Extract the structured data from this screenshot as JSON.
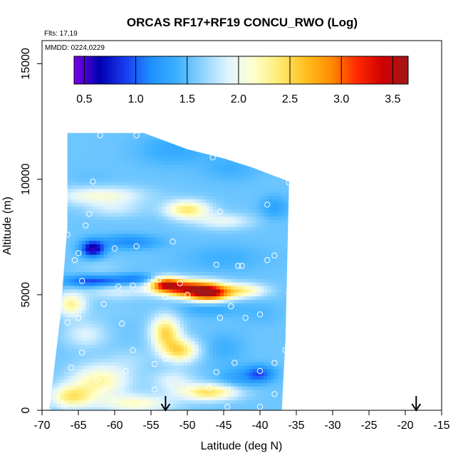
{
  "chart_data": {
    "type": "heatmap",
    "title": "ORCAS RF17+RF19 CONCU_RWO (Log)",
    "annotations": {
      "flights": "Flts: 17,19",
      "dates": "MMDD: 0224,0229"
    },
    "xlabel": "Latitude (deg N)",
    "ylabel": "Altitude (m)",
    "xlim": [
      -70,
      -15
    ],
    "ylim": [
      0,
      16000
    ],
    "x_ticks": [
      -70,
      -65,
      -60,
      -55,
      -50,
      -45,
      -40,
      -35,
      -30,
      -25,
      -20,
      -15
    ],
    "x_tick_labels": [
      "-70",
      "-65",
      "-60",
      "-55",
      "-50",
      "-45",
      "-40",
      "-35",
      "-30",
      "-25",
      "-20",
      "-15"
    ],
    "y_ticks": [
      0,
      5000,
      10000,
      15000
    ],
    "y_tick_labels": [
      "0",
      "5000",
      "10000",
      "15000"
    ],
    "colorbar": {
      "range": [
        0.4,
        3.65
      ],
      "ticks": [
        0.5,
        1.0,
        1.5,
        2.0,
        2.5,
        3.0,
        3.5
      ],
      "tick_labels": [
        "0.5",
        "1.0",
        "1.5",
        "2.0",
        "2.5",
        "3.0",
        "3.5"
      ],
      "colors": [
        "#7a00e8",
        "#0000b0",
        "#1a3cf0",
        "#1e90ff",
        "#3cb0ff",
        "#8fd4ff",
        "#e0f4ff",
        "#ffffcc",
        "#ffea70",
        "#ffc020",
        "#ff8c00",
        "#ff2a00",
        "#d00000",
        "#a01818"
      ]
    },
    "domain_outline": [
      [
        -66.5,
        12000
      ],
      [
        -56,
        12000
      ],
      [
        -50,
        11300
      ],
      [
        -45,
        10900
      ],
      [
        -41,
        10500
      ],
      [
        -36,
        9900
      ],
      [
        -36.5,
        3000
      ],
      [
        -37,
        0
      ],
      [
        -69,
        0
      ],
      [
        -67.5,
        4000
      ],
      [
        -66.5,
        8000
      ]
    ],
    "field_features": [
      {
        "x": -64,
        "y": 12000,
        "value": 1.55,
        "sx": 5,
        "sy": 700
      },
      {
        "x": -52,
        "y": 11300,
        "value": 1.35,
        "sx": 5,
        "sy": 700
      },
      {
        "x": -44,
        "y": 10500,
        "value": 1.4,
        "sx": 4,
        "sy": 600
      },
      {
        "x": -63,
        "y": 9900,
        "value": 1.5,
        "sx": 3,
        "sy": 500
      },
      {
        "x": -62,
        "y": 9300,
        "value": 2.1,
        "sx": 6,
        "sy": 400
      },
      {
        "x": -50,
        "y": 8700,
        "value": 2.4,
        "sx": 3,
        "sy": 400
      },
      {
        "x": -60,
        "y": 8700,
        "value": 1.8,
        "sx": 4,
        "sy": 350
      },
      {
        "x": -45,
        "y": 8200,
        "value": 1.95,
        "sx": 4,
        "sy": 350
      },
      {
        "x": -38,
        "y": 8800,
        "value": 1.3,
        "sx": 2,
        "sy": 500
      },
      {
        "x": -63,
        "y": 7000,
        "value": 0.55,
        "sx": 1.6,
        "sy": 350
      },
      {
        "x": -58,
        "y": 7300,
        "value": 1.15,
        "sx": 4,
        "sy": 300
      },
      {
        "x": -62,
        "y": 6200,
        "value": 1.65,
        "sx": 3,
        "sy": 400
      },
      {
        "x": -45,
        "y": 6600,
        "value": 1.4,
        "sx": 6,
        "sy": 600
      },
      {
        "x": -63,
        "y": 5600,
        "value": 0.9,
        "sx": 4,
        "sy": 250
      },
      {
        "x": -57,
        "y": 5700,
        "value": 1.1,
        "sx": 3,
        "sy": 220
      },
      {
        "x": -50,
        "y": 5300,
        "value": 3.15,
        "sx": 4.5,
        "sy": 350
      },
      {
        "x": -47,
        "y": 5050,
        "value": 3.1,
        "sx": 3,
        "sy": 350
      },
      {
        "x": -53,
        "y": 5500,
        "value": 2.75,
        "sx": 2,
        "sy": 300
      },
      {
        "x": -42,
        "y": 5200,
        "value": 2.2,
        "sx": 3,
        "sy": 300
      },
      {
        "x": -60,
        "y": 5150,
        "value": 1.85,
        "sx": 4,
        "sy": 350
      },
      {
        "x": -66,
        "y": 4600,
        "value": 2.3,
        "sx": 2,
        "sy": 500
      },
      {
        "x": -60,
        "y": 4300,
        "value": 1.6,
        "sx": 4,
        "sy": 400
      },
      {
        "x": -47,
        "y": 4500,
        "value": 1.3,
        "sx": 4,
        "sy": 400
      },
      {
        "x": -40,
        "y": 4200,
        "value": 1.45,
        "sx": 3,
        "sy": 500
      },
      {
        "x": -64,
        "y": 3300,
        "value": 1.9,
        "sx": 3,
        "sy": 600
      },
      {
        "x": -53,
        "y": 3400,
        "value": 2.5,
        "sx": 2,
        "sy": 700
      },
      {
        "x": -51,
        "y": 2600,
        "value": 2.45,
        "sx": 2.5,
        "sy": 500
      },
      {
        "x": -45,
        "y": 2700,
        "value": 1.4,
        "sx": 3,
        "sy": 700
      },
      {
        "x": -38,
        "y": 3000,
        "value": 1.55,
        "sx": 2,
        "sy": 800
      },
      {
        "x": -58,
        "y": 2200,
        "value": 1.7,
        "sx": 3,
        "sy": 500
      },
      {
        "x": -62,
        "y": 1300,
        "value": 2.25,
        "sx": 4,
        "sy": 700
      },
      {
        "x": -52,
        "y": 1300,
        "value": 1.9,
        "sx": 3,
        "sy": 500
      },
      {
        "x": -40,
        "y": 1600,
        "value": 1.0,
        "sx": 2,
        "sy": 350
      },
      {
        "x": -43,
        "y": 1400,
        "value": 1.3,
        "sx": 3,
        "sy": 450
      },
      {
        "x": -47,
        "y": 800,
        "value": 2.45,
        "sx": 4,
        "sy": 350
      },
      {
        "x": -66,
        "y": 600,
        "value": 2.35,
        "sx": 3,
        "sy": 500
      },
      {
        "x": -57,
        "y": 300,
        "value": 2.15,
        "sx": 5,
        "sy": 400
      }
    ],
    "field_background": 1.55,
    "sample_points": [
      [
        -62,
        11900
      ],
      [
        -57,
        11900
      ],
      [
        -46.5,
        10950
      ],
      [
        -63,
        9900
      ],
      [
        -36,
        9850
      ],
      [
        -63.5,
        8500
      ],
      [
        -45.5,
        8600
      ],
      [
        -39,
        8900
      ],
      [
        -64,
        8000
      ],
      [
        -66.5,
        7600
      ],
      [
        -57,
        7100
      ],
      [
        -52,
        7300
      ],
      [
        -60,
        7000
      ],
      [
        -65,
        6800
      ],
      [
        -65.5,
        6500
      ],
      [
        -38,
        6700
      ],
      [
        -39,
        6500
      ],
      [
        -43,
        6250
      ],
      [
        -42.5,
        6250
      ],
      [
        -46,
        6300
      ],
      [
        -64.5,
        5600
      ],
      [
        -54,
        5650
      ],
      [
        -51,
        5500
      ],
      [
        -59.5,
        5350
      ],
      [
        -55.5,
        5200
      ],
      [
        -57.5,
        5400
      ],
      [
        -53,
        4900
      ],
      [
        -50,
        5000
      ],
      [
        -36,
        5050
      ],
      [
        -61.5,
        4600
      ],
      [
        -44,
        4500
      ],
      [
        -65,
        4000
      ],
      [
        -66.5,
        3800
      ],
      [
        -59,
        3750
      ],
      [
        -45.5,
        4000
      ],
      [
        -42,
        4000
      ],
      [
        -40,
        4150
      ],
      [
        -36.5,
        2600
      ],
      [
        -64.5,
        2500
      ],
      [
        -57.5,
        2600
      ],
      [
        -58.5,
        1700
      ],
      [
        -54.5,
        2000
      ],
      [
        -53,
        2250
      ],
      [
        -43.5,
        2050
      ],
      [
        -38,
        2050
      ],
      [
        -40,
        1700
      ],
      [
        -46,
        1650
      ],
      [
        -66,
        1850
      ],
      [
        -62.5,
        1300
      ],
      [
        -61.5,
        900
      ],
      [
        -54.5,
        900
      ],
      [
        -60,
        450
      ],
      [
        -55.5,
        350
      ],
      [
        -49.5,
        850
      ],
      [
        -47,
        950
      ],
      [
        -38,
        700
      ],
      [
        -44.5,
        150
      ],
      [
        -69,
        150
      ],
      [
        -67,
        200
      ],
      [
        -40,
        150
      ],
      [
        -56.5,
        200
      ]
    ],
    "arrows": [
      -53,
      -18.5
    ]
  }
}
